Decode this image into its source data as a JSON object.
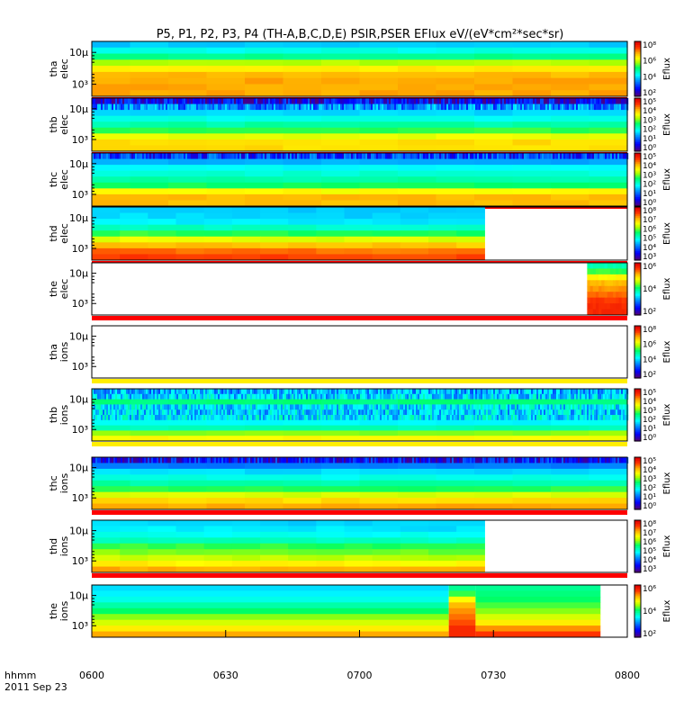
{
  "chart_data": {
    "type": "heatmap",
    "title": "P5, P1, P2, P3, P4 (TH-A,B,C,D,E) PSIR,PSER EFlux eV/(eV*cm²*sec*sr)",
    "x_tick_labels": [
      "0600",
      "0630",
      "0700",
      "0730",
      "0800"
    ],
    "x_unit_label": "hhmm",
    "date_label": "2011 Sep 23",
    "time_range_hhmm": [
      "0600",
      "0800"
    ],
    "colorbar_label": "Eflux",
    "panels": [
      {
        "probe": "tha",
        "species": "elec",
        "y_ticks": [
          "10³",
          "10µ"
        ],
        "colorbar_ticks": [
          "10⁸",
          "10⁶",
          "10⁴",
          "10²"
        ],
        "data_end_hhmm": "0800",
        "levels": [
          0.33,
          0.4,
          0.48,
          0.63,
          0.72,
          0.78,
          0.8,
          0.8,
          0.8
        ]
      },
      {
        "probe": "thb",
        "species": "elec",
        "y_ticks": [
          "10³",
          "10µ"
        ],
        "colorbar_ticks": [
          "10⁵",
          "10⁴",
          "10³",
          "10²",
          "10¹",
          "10⁰"
        ],
        "data_end_hhmm": "0800",
        "levels": [
          0.1,
          0.26,
          0.34,
          0.4,
          0.46,
          0.55,
          0.68,
          0.74,
          0.74
        ],
        "noisy_rows": [
          0,
          1
        ]
      },
      {
        "probe": "thc",
        "species": "elec",
        "y_ticks": [
          "10³",
          "10µ"
        ],
        "colorbar_ticks": [
          "10⁵",
          "10⁴",
          "10³",
          "10²",
          "10¹",
          "10⁰"
        ],
        "data_end_hhmm": "0800",
        "levels": [
          0.18,
          0.3,
          0.38,
          0.42,
          0.46,
          0.52,
          0.7,
          0.78,
          0.78
        ],
        "noisy_rows": [
          0
        ]
      },
      {
        "probe": "thd",
        "species": "elec",
        "y_ticks": [
          "10³",
          "10µ"
        ],
        "colorbar_ticks": [
          "10⁸",
          "10⁷",
          "10⁶",
          "10⁵",
          "10⁴",
          "10³"
        ],
        "data_end_hhmm": "0728",
        "levels": [
          0.34,
          0.35,
          0.37,
          0.44,
          0.55,
          0.68,
          0.78,
          0.86,
          0.9
        ]
      },
      {
        "probe": "the",
        "species": "elec",
        "y_ticks": [
          "10³",
          "10µ"
        ],
        "colorbar_ticks": [
          "10⁶",
          "10⁴",
          "10²"
        ],
        "data_start_hhmm": "0751",
        "data_end_hhmm": "0800",
        "levels": [
          0.45,
          0.55,
          0.7,
          0.78,
          0.82,
          0.86,
          0.9,
          0.92,
          0.92
        ]
      },
      {
        "probe": "tha",
        "species": "ions",
        "y_ticks": [
          "10³",
          "10µ"
        ],
        "colorbar_ticks": [
          "10⁸",
          "10⁶",
          "10⁴",
          "10²"
        ],
        "data_end_hhmm": "0600",
        "levels": []
      },
      {
        "probe": "thb",
        "species": "ions",
        "y_ticks": [
          "10³",
          "10µ"
        ],
        "colorbar_ticks": [
          "10⁵",
          "10⁴",
          "10³",
          "10²",
          "10¹",
          "10⁰"
        ],
        "data_end_hhmm": "0800",
        "levels": [
          0.3,
          0.34,
          0.5,
          0.36,
          0.34,
          0.36,
          0.38,
          0.45,
          0.6,
          0.7
        ],
        "noisy_rows": [
          0,
          1,
          3,
          4,
          5
        ]
      },
      {
        "probe": "thc",
        "species": "ions",
        "y_ticks": [
          "10³",
          "10µ"
        ],
        "colorbar_ticks": [
          "10⁵",
          "10⁴",
          "10³",
          "10²",
          "10¹",
          "10⁰"
        ],
        "data_end_hhmm": "0800",
        "levels": [
          0.12,
          0.25,
          0.35,
          0.4,
          0.46,
          0.54,
          0.66,
          0.74,
          0.8
        ],
        "noisy_rows": [
          0
        ]
      },
      {
        "probe": "thd",
        "species": "ions",
        "y_ticks": [
          "10³",
          "10µ"
        ],
        "colorbar_ticks": [
          "10⁸",
          "10⁷",
          "10⁶",
          "10⁵",
          "10⁴",
          "10³"
        ],
        "data_end_hhmm": "0728",
        "levels": [
          0.35,
          0.37,
          0.4,
          0.45,
          0.55,
          0.6,
          0.65,
          0.72,
          0.8
        ]
      },
      {
        "probe": "the",
        "species": "ions",
        "y_ticks": [
          "10³",
          "10µ"
        ],
        "colorbar_ticks": [
          "10⁶",
          "10⁴",
          "10²"
        ],
        "data_end_hhmm": "0754",
        "levels": [
          0.35,
          0.37,
          0.4,
          0.46,
          0.52,
          0.6,
          0.66,
          0.72,
          0.8
        ],
        "event": {
          "start_hhmm": "0720",
          "end_hhmm": "0726",
          "levels": [
            0.48,
            0.55,
            0.7,
            0.78,
            0.82,
            0.85,
            0.88,
            0.92,
            0.92
          ]
        },
        "after_event_levels": [
          0.48,
          0.5,
          0.52,
          0.56,
          0.6,
          0.66,
          0.72,
          0.82,
          0.9
        ]
      }
    ]
  }
}
